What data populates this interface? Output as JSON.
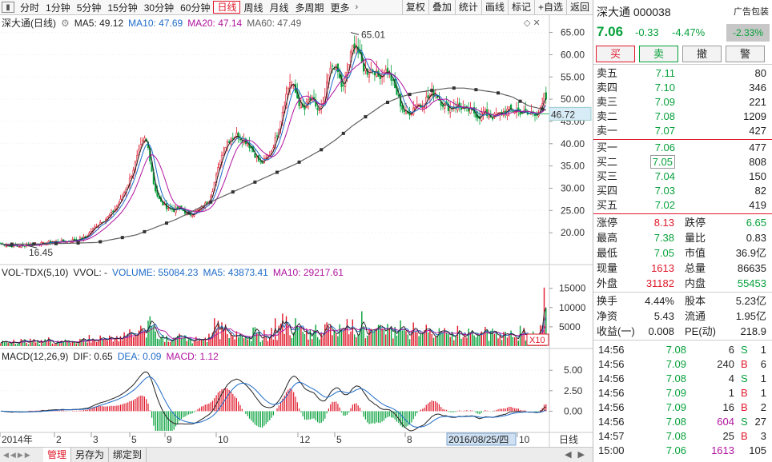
{
  "toolbar": {
    "periods": [
      "分时",
      "1分钟",
      "5分钟",
      "15分钟",
      "30分钟",
      "60分钟",
      "日线",
      "周线",
      "月线",
      "多周期",
      "更多"
    ],
    "active_period": "日线",
    "right_buttons": [
      "复权",
      "叠加",
      "统计",
      "画线",
      "标记",
      "+自选",
      "返回"
    ]
  },
  "main_legend": {
    "title": "深大通(日线)",
    "ma5": "MA5: 49.12",
    "ma10": "MA10: 47.69",
    "ma20": "MA20: 47.14",
    "ma60": "MA60: 47.49"
  },
  "vol_legend": {
    "title": "VOL-TDX(5,10)",
    "vvol": "VVOL: -",
    "volume": "VOLUME: 55084.23",
    "ma5": "MA5: 43873.41",
    "ma10": "MA10: 29217.61"
  },
  "macd_legend": {
    "title": "MACD(12,26,9)",
    "dif": "DIF: 0.65",
    "dea": "DEA: 0.09",
    "macd": "MACD: 1.12"
  },
  "annotations": {
    "high": "65.01",
    "low": "16.45",
    "current": "46.72",
    "vol_unit": "X10",
    "date_cursor": "2016/08/25/四",
    "period_tag": "日线"
  },
  "bottom_tabs": [
    "管理",
    "另存为",
    "绑定到"
  ],
  "colors": {
    "up": "#e0182a",
    "down": "#06a13b",
    "ma5": "#222222",
    "ma10": "#1e6bc8",
    "ma20": "#b0139f",
    "ma60": "#606060"
  },
  "chart_data": {
    "type": "candlestick",
    "main_axis": {
      "ylim": [
        15,
        66
      ],
      "ticks": [
        "65.00",
        "60.00",
        "55.00",
        "50.00",
        "45.00",
        "40.00",
        "35.00",
        "30.00",
        "25.00",
        "20.00"
      ]
    },
    "vol_axis": {
      "ticks": [
        "15000",
        "10000",
        "5000"
      ]
    },
    "macd_axis": {
      "ticks": [
        "5.00",
        "2.50",
        "0.00"
      ]
    },
    "x_labels": [
      "2014年",
      "2",
      "3",
      "4",
      "5",
      "6",
      "7",
      "8",
      "9",
      "10",
      "11",
      "12",
      "5",
      "6",
      "7",
      "8",
      "9",
      "10"
    ],
    "close_path": [
      [
        0,
        17.5
      ],
      [
        6,
        17.3
      ],
      [
        12,
        17.0
      ],
      [
        18,
        17.2
      ],
      [
        24,
        17.0
      ],
      [
        30,
        17.1
      ],
      [
        36,
        17.4
      ],
      [
        42,
        17.2
      ],
      [
        48,
        17.6
      ],
      [
        54,
        17.5
      ],
      [
        60,
        17.8
      ],
      [
        66,
        18.0
      ],
      [
        72,
        17.9
      ],
      [
        78,
        18.1
      ],
      [
        84,
        18.0
      ],
      [
        90,
        18.3
      ],
      [
        96,
        18.5
      ],
      [
        102,
        18.6
      ],
      [
        108,
        19.2
      ],
      [
        114,
        20.4
      ],
      [
        120,
        21.5
      ],
      [
        126,
        22.5
      ],
      [
        132,
        23.0
      ],
      [
        138,
        24.0
      ],
      [
        144,
        25.5
      ],
      [
        150,
        27.0
      ],
      [
        156,
        29.5
      ],
      [
        162,
        32.0
      ],
      [
        168,
        35.0
      ],
      [
        174,
        38.5
      ],
      [
        180,
        41.0
      ],
      [
        184,
        40.0
      ],
      [
        188,
        36.0
      ],
      [
        192,
        31.0
      ],
      [
        196,
        28.5
      ],
      [
        200,
        27.0
      ],
      [
        206,
        26.0
      ],
      [
        212,
        25.5
      ],
      [
        218,
        25.0
      ],
      [
        224,
        25.5
      ],
      [
        230,
        24.8
      ],
      [
        236,
        24.0
      ],
      [
        242,
        24.5
      ],
      [
        248,
        25.0
      ],
      [
        254,
        26.0
      ],
      [
        260,
        27.0
      ],
      [
        266,
        30.0
      ],
      [
        272,
        34.0
      ],
      [
        278,
        38.0
      ],
      [
        284,
        40.5
      ],
      [
        290,
        41.5
      ],
      [
        296,
        42.0
      ],
      [
        302,
        41.0
      ],
      [
        308,
        40.5
      ],
      [
        314,
        39.0
      ],
      [
        320,
        37.0
      ],
      [
        326,
        35.5
      ],
      [
        332,
        36.5
      ],
      [
        338,
        38.0
      ],
      [
        344,
        41.0
      ],
      [
        350,
        45.0
      ],
      [
        356,
        50.0
      ],
      [
        362,
        54.0
      ],
      [
        368,
        52.0
      ],
      [
        374,
        49.0
      ],
      [
        380,
        47.5
      ],
      [
        386,
        50.0
      ],
      [
        392,
        49.5
      ],
      [
        398,
        47.0
      ],
      [
        404,
        48.5
      ],
      [
        410,
        55.0
      ],
      [
        416,
        58.0
      ],
      [
        422,
        56.0
      ],
      [
        428,
        52.0
      ],
      [
        434,
        56.5
      ],
      [
        440,
        61.5
      ],
      [
        444,
        63.0
      ],
      [
        448,
        60.0
      ],
      [
        454,
        57.0
      ],
      [
        460,
        56.0
      ],
      [
        466,
        57.0
      ],
      [
        472,
        55.0
      ],
      [
        478,
        56.0
      ],
      [
        484,
        56.5
      ],
      [
        490,
        54.0
      ],
      [
        496,
        51.0
      ],
      [
        502,
        48.0
      ],
      [
        508,
        46.5
      ],
      [
        514,
        47.5
      ],
      [
        520,
        49.0
      ],
      [
        526,
        48.5
      ],
      [
        532,
        50.0
      ],
      [
        538,
        51.0
      ],
      [
        544,
        51.5
      ],
      [
        550,
        49.5
      ],
      [
        556,
        48.5
      ],
      [
        562,
        48.0
      ],
      [
        568,
        48.5
      ],
      [
        574,
        48.5
      ],
      [
        580,
        47.5
      ],
      [
        586,
        47.5
      ],
      [
        592,
        47.0
      ],
      [
        598,
        46.0
      ],
      [
        604,
        47.0
      ],
      [
        610,
        46.5
      ],
      [
        616,
        46.0
      ],
      [
        622,
        46.5
      ],
      [
        628,
        47.0
      ],
      [
        634,
        47.5
      ],
      [
        640,
        47.5
      ],
      [
        646,
        47.5
      ],
      [
        652,
        47.0
      ],
      [
        658,
        46.5
      ],
      [
        664,
        47.0
      ],
      [
        670,
        47.0
      ],
      [
        676,
        47.5
      ],
      [
        680,
        51.0
      ],
      [
        684,
        49.0
      ]
    ],
    "ma60_path": [
      [
        0,
        17.4
      ],
      [
        60,
        17.5
      ],
      [
        120,
        17.8
      ],
      [
        170,
        19.5
      ],
      [
        220,
        23.0
      ],
      [
        270,
        27.5
      ],
      [
        320,
        31.5
      ],
      [
        370,
        35.5
      ],
      [
        400,
        38.5
      ],
      [
        420,
        41.0
      ],
      [
        440,
        44.0
      ],
      [
        460,
        46.5
      ],
      [
        480,
        49.0
      ],
      [
        500,
        50.5
      ],
      [
        520,
        51.5
      ],
      [
        540,
        52.0
      ],
      [
        560,
        52.5
      ],
      [
        580,
        52.5
      ],
      [
        600,
        52.0
      ],
      [
        620,
        51.5
      ],
      [
        640,
        50.5
      ],
      [
        660,
        48.5
      ],
      [
        684,
        47.5
      ]
    ]
  },
  "panel": {
    "stock_name": "深大通",
    "stock_code": "000038",
    "ad_label": "广告包装",
    "price": "7.06",
    "change": "-0.33",
    "change_pct": "-4.47%",
    "badge": "-2.33%",
    "buttons": [
      "买",
      "卖",
      "撤",
      "警"
    ],
    "asks": [
      {
        "label": "卖五",
        "price": "7.11",
        "vol": "80"
      },
      {
        "label": "卖四",
        "price": "7.10",
        "vol": "346"
      },
      {
        "label": "卖三",
        "price": "7.09",
        "vol": "221"
      },
      {
        "label": "卖二",
        "price": "7.08",
        "vol": "1209"
      },
      {
        "label": "卖一",
        "price": "7.07",
        "vol": "427"
      }
    ],
    "bids": [
      {
        "label": "买一",
        "price": "7.06",
        "vol": "477"
      },
      {
        "label": "买二",
        "price": "7.05",
        "vol": "808"
      },
      {
        "label": "买三",
        "price": "7.04",
        "vol": "150"
      },
      {
        "label": "买四",
        "price": "7.03",
        "vol": "82"
      },
      {
        "label": "买五",
        "price": "7.02",
        "vol": "419"
      }
    ],
    "stats_a": [
      {
        "l1": "涨停",
        "v1": "8.13",
        "l2": "跌停",
        "v2": "6.65"
      },
      {
        "l1": "最高",
        "v1": "7.38",
        "l2": "量比",
        "v2": "0.83"
      },
      {
        "l1": "最低",
        "v1": "7.05",
        "l2": "市值",
        "v2": "36.9亿"
      },
      {
        "l1": "现量",
        "v1": "1613",
        "l2": "总量",
        "v2": "86635"
      },
      {
        "l1": "外盘",
        "v1": "31182",
        "l2": "内盘",
        "v2": "55453"
      }
    ],
    "stats_b": [
      {
        "l1": "换手",
        "v1": "4.44%",
        "l2": "股本",
        "v2": "5.23亿"
      },
      {
        "l1": "净资",
        "v1": "5.43",
        "l2": "流通",
        "v2": "1.95亿"
      },
      {
        "l1": "收益(一)",
        "v1": "0.008",
        "l2": "PE(动)",
        "v2": "218.9"
      }
    ],
    "ticks": [
      {
        "t": "14:56",
        "p": "7.08",
        "v": "6",
        "d": "S",
        "n": "1"
      },
      {
        "t": "14:56",
        "p": "7.09",
        "v": "240",
        "d": "B",
        "n": "6"
      },
      {
        "t": "14:56",
        "p": "7.08",
        "v": "4",
        "d": "S",
        "n": "1"
      },
      {
        "t": "14:56",
        "p": "7.09",
        "v": "1",
        "d": "B",
        "n": "1"
      },
      {
        "t": "14:56",
        "p": "7.09",
        "v": "16",
        "d": "B",
        "n": "2"
      },
      {
        "t": "14:56",
        "p": "7.08",
        "v": "604",
        "d": "S",
        "n": "27"
      },
      {
        "t": "14:57",
        "p": "7.08",
        "v": "25",
        "d": "B",
        "n": "3"
      },
      {
        "t": "15:00",
        "p": "7.06",
        "v": "1613",
        "d": "",
        "n": "105"
      }
    ]
  }
}
